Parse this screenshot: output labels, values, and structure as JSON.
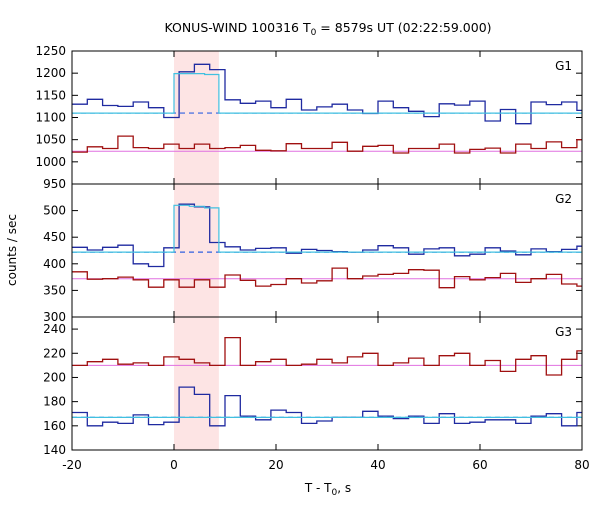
{
  "chart_data": {
    "type": "line",
    "title_main": "KONUS-WIND 100316 T",
    "title_sub": "0",
    "title_rest": " = 8579s UT (02:22:59.000)",
    "xlabel_main": "T - T",
    "xlabel_sub": "0",
    "xlabel_rest": ", s",
    "ylabel": "counts / sec",
    "xlim": [
      -20,
      80
    ],
    "x_ticks": [
      "-20",
      "0",
      "20",
      "40",
      "60",
      "80"
    ],
    "highlight_interval": [
      0,
      8.8
    ],
    "colors": {
      "fast_hist": "#1f2aa0",
      "slow_hist": "#a01010",
      "fast_bg": "#3060e0",
      "slow_bg": "#e070e0",
      "burst_fit": "#40c0e0",
      "highlight": "#fde4e4"
    },
    "panels": [
      {
        "label": "G1",
        "ylim": [
          950,
          1250
        ],
        "y_ticks": [
          950,
          1000,
          1050,
          1100,
          1150,
          1200,
          1250
        ],
        "fast_bg_level": 1110,
        "slow_bg_level": 1024,
        "series": [
          {
            "name": "",
            "bin_edges": [
              -20,
              -17,
              -14,
              -11,
              -8,
              -5,
              -2,
              1,
              4,
              7,
              10,
              13,
              16,
              19,
              22,
              25,
              28,
              31,
              34,
              37,
              40,
              43,
              46,
              49,
              52,
              55,
              58,
              61,
              64,
              67,
              70,
              73,
              76,
              79,
              80
            ],
            "values": [
              1130,
              1141,
              1127,
              1125,
              1135,
              1122,
              1100,
              1203,
              1220,
              1208,
              1140,
              1132,
              1137,
              1122,
              1141,
              1117,
              1124,
              1130,
              1117,
              1109,
              1137,
              1122,
              1114,
              1102,
              1131,
              1128,
              1137,
              1092,
              1118,
              1086,
              1135,
              1129,
              1135,
              1116
            ]
          },
          {
            "name": "",
            "bin_edges": [
              -20,
              -17,
              -14,
              -11,
              -8,
              -5,
              -2,
              1,
              4,
              7,
              10,
              13,
              16,
              19,
              22,
              25,
              28,
              31,
              34,
              37,
              40,
              43,
              46,
              49,
              52,
              55,
              58,
              61,
              64,
              67,
              70,
              73,
              76,
              79,
              80
            ],
            "values": [
              1022,
              1034,
              1030,
              1058,
              1032,
              1030,
              1040,
              1030,
              1040,
              1030,
              1032,
              1037,
              1026,
              1025,
              1041,
              1030,
              1030,
              1044,
              1024,
              1035,
              1037,
              1020,
              1030,
              1030,
              1040,
              1020,
              1028,
              1031,
              1020,
              1040,
              1030,
              1045,
              1032,
              1050
            ]
          }
        ],
        "burst_fit": {
          "bin_edges": [
            -20,
            0,
            3,
            6,
            8.8,
            80
          ],
          "values": [
            1110,
            1199,
            1199,
            1197,
            1110
          ]
        }
      },
      {
        "label": "G2",
        "ylim": [
          300,
          550
        ],
        "y_ticks": [
          300,
          350,
          400,
          450,
          500
        ],
        "fast_bg_level": 422,
        "slow_bg_level": 372,
        "series": [
          {
            "name": "",
            "bin_edges": [
              -20,
              -17,
              -14,
              -11,
              -8,
              -5,
              -2,
              1,
              4,
              7,
              10,
              13,
              16,
              19,
              22,
              25,
              28,
              31,
              34,
              37,
              40,
              43,
              46,
              49,
              52,
              55,
              58,
              61,
              64,
              67,
              70,
              73,
              76,
              79,
              80
            ],
            "values": [
              431,
              426,
              431,
              435,
              400,
              395,
              430,
              512,
              507,
              440,
              432,
              426,
              429,
              430,
              420,
              427,
              425,
              423,
              422,
              426,
              434,
              430,
              418,
              428,
              430,
              415,
              418,
              430,
              424,
              417,
              428,
              423,
              427,
              433
            ]
          },
          {
            "name": "",
            "bin_edges": [
              -20,
              -17,
              -14,
              -11,
              -8,
              -5,
              -2,
              1,
              4,
              7,
              10,
              13,
              16,
              19,
              22,
              25,
              28,
              31,
              34,
              37,
              40,
              43,
              46,
              49,
              52,
              55,
              58,
              61,
              64,
              67,
              70,
              73,
              76,
              79,
              80
            ],
            "values": [
              385,
              371,
              372,
              375,
              370,
              356,
              370,
              356,
              370,
              356,
              379,
              369,
              358,
              361,
              372,
              364,
              368,
              392,
              372,
              377,
              380,
              382,
              389,
              388,
              355,
              376,
              370,
              374,
              382,
              365,
              372,
              380,
              362,
              358
            ]
          }
        ],
        "burst_fit": {
          "bin_edges": [
            -20,
            0,
            3,
            6,
            8.8,
            80
          ],
          "values": [
            422,
            510,
            508,
            505,
            422
          ]
        }
      },
      {
        "label": "G3",
        "ylim": [
          140,
          250
        ],
        "y_ticks": [
          140,
          160,
          180,
          200,
          220,
          240
        ],
        "fast_bg_level": 167,
        "slow_bg_level": 210,
        "series": [
          {
            "name": "",
            "bin_edges": [
              -20,
              -17,
              -14,
              -11,
              -8,
              -5,
              -2,
              1,
              4,
              7,
              10,
              13,
              16,
              19,
              22,
              25,
              28,
              31,
              34,
              37,
              40,
              43,
              46,
              49,
              52,
              55,
              58,
              61,
              64,
              67,
              70,
              73,
              76,
              79,
              80
            ],
            "values": [
              171,
              160,
              163,
              162,
              169,
              161,
              163,
              192,
              186,
              160,
              185,
              168,
              165,
              173,
              171,
              162,
              164,
              167,
              167,
              172,
              168,
              166,
              168,
              162,
              170,
              162,
              163,
              165,
              165,
              162,
              168,
              170,
              160,
              171
            ]
          },
          {
            "name": "",
            "bin_edges": [
              -20,
              -17,
              -14,
              -11,
              -8,
              -5,
              -2,
              1,
              4,
              7,
              10,
              13,
              16,
              19,
              22,
              25,
              28,
              31,
              34,
              37,
              40,
              43,
              46,
              49,
              52,
              55,
              58,
              61,
              64,
              67,
              70,
              73,
              76,
              79,
              80
            ],
            "values": [
              210,
              213,
              215,
              211,
              212,
              210,
              217,
              215,
              212,
              210,
              233,
              210,
              213,
              215,
              210,
              211,
              215,
              212,
              217,
              220,
              210,
              212,
              216,
              210,
              218,
              220,
              210,
              214,
              205,
              215,
              218,
              202,
              215,
              222
            ]
          }
        ],
        "burst_fit": {
          "bin_edges": [
            -20,
            80
          ],
          "values": [
            167
          ]
        }
      }
    ]
  }
}
